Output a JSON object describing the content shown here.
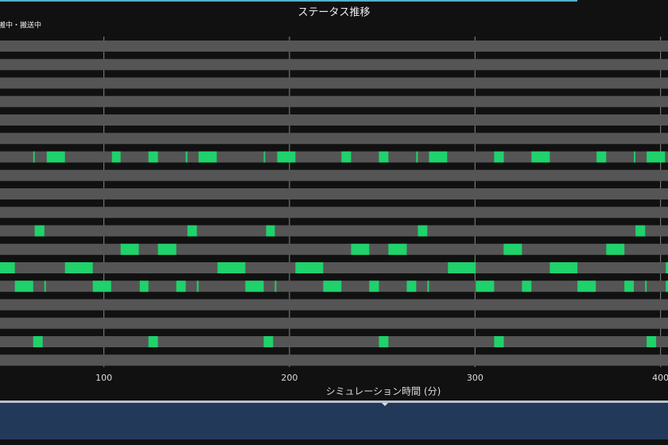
{
  "chart_data": {
    "type": "timeline",
    "title": "ステータス推移",
    "x_label": "シミュレーション時間 (分)",
    "categories": [
      null,
      null,
      null,
      null,
      null,
      null,
      null,
      null,
      null,
      null,
      null,
      null,
      null,
      null,
      null,
      null,
      null,
      null
    ],
    "track_color": "#555555",
    "series": [
      {
        "name": "搬中・搬送中",
        "color": "#1fd26b",
        "rows": [
          [],
          [],
          [],
          [],
          [],
          [],
          [
            [
              61.9,
              62.7
            ],
            [
              69.2,
              79.0
            ],
            [
              104.3,
              109.0
            ],
            [
              124.0,
              129.1
            ],
            [
              144.1,
              145.0
            ],
            [
              151.0,
              160.8
            ],
            [
              186.1,
              186.9
            ],
            [
              193.4,
              203.2
            ],
            [
              228.0,
              233.2
            ],
            [
              248.2,
              253.3
            ],
            [
              268.3,
              269.2
            ],
            [
              275.2,
              285.0
            ],
            [
              310.3,
              315.5
            ],
            [
              330.4,
              340.3
            ],
            [
              365.5,
              370.7
            ],
            [
              385.6,
              386.4
            ],
            [
              392.5,
              402.4
            ]
          ],
          [],
          [],
          [],
          [
            [
              62.7,
              67.9
            ],
            [
              145.0,
              150.1
            ],
            [
              187.4,
              192.1
            ],
            [
              269.2,
              274.3
            ],
            [
              386.5,
              391.7
            ]
          ],
          [
            [
              109.0,
              118.8
            ],
            [
              129.1,
              139.0
            ],
            [
              233.2,
              243.0
            ],
            [
              253.3,
              263.2
            ],
            [
              315.4,
              325.3
            ],
            [
              370.7,
              380.5
            ]
          ],
          [
            [
              44.0,
              52.0
            ],
            [
              79.0,
              94.0
            ],
            [
              161.2,
              176.2
            ],
            [
              203.2,
              218.2
            ],
            [
              285.4,
              300.4
            ],
            [
              340.3,
              355.2
            ],
            [
              402.8,
              404.0
            ]
          ],
          [
            [
              52.0,
              61.9
            ],
            [
              67.9,
              68.7
            ],
            [
              94.0,
              103.9
            ],
            [
              119.3,
              124.0
            ],
            [
              139.0,
              144.1
            ],
            [
              150.1,
              151.0
            ],
            [
              176.2,
              186.1
            ],
            [
              192.1,
              192.9
            ],
            [
              218.2,
              228.0
            ],
            [
              243.0,
              248.2
            ],
            [
              263.2,
              268.3
            ],
            [
              274.3,
              275.2
            ],
            [
              300.4,
              310.3
            ],
            [
              325.3,
              330.4
            ],
            [
              355.2,
              365.1
            ],
            [
              380.5,
              385.6
            ],
            [
              391.7,
              392.5
            ],
            [
              402.8,
              404.0
            ]
          ],
          [],
          [],
          [
            [
              61.9,
              67.0
            ],
            [
              124.0,
              129.1
            ],
            [
              186.1,
              191.2
            ],
            [
              248.2,
              253.3
            ],
            [
              310.3,
              315.5
            ],
            [
              392.5,
              397.6
            ]
          ],
          []
        ]
      }
    ],
    "xlim": [
      44,
      404
    ],
    "xticks": [
      100,
      200,
      300,
      400
    ],
    "grid": true
  }
}
